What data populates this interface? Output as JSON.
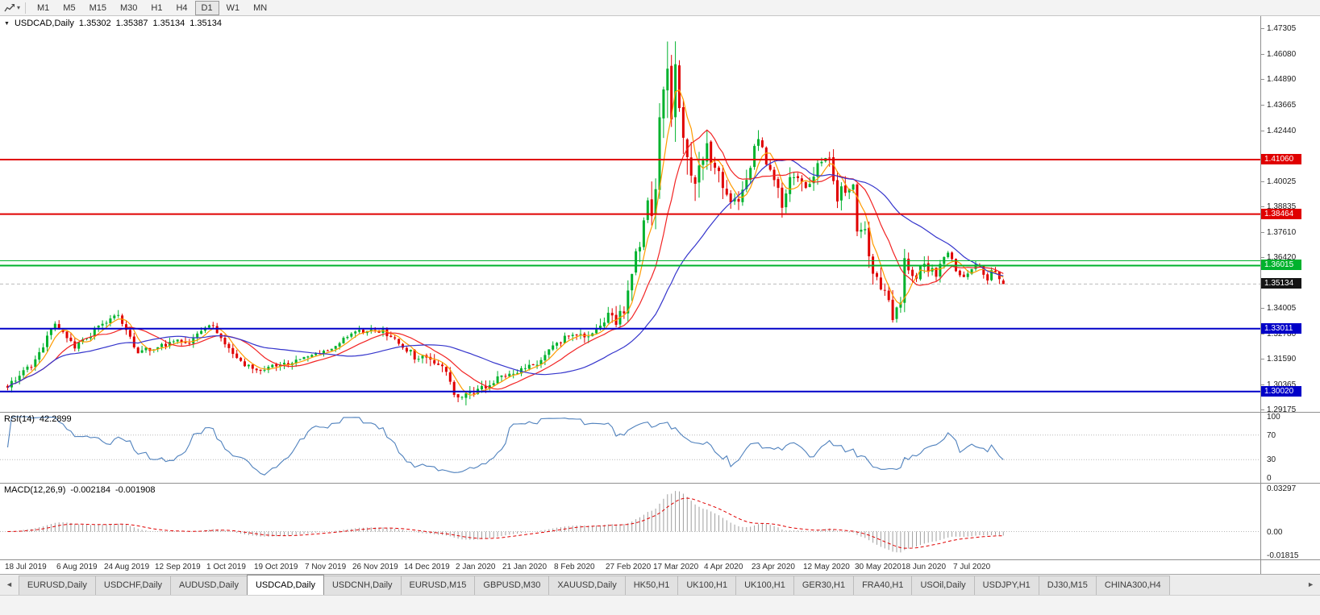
{
  "toolbar": {
    "chart_icon": "line-chart",
    "dropdown_caret": "▾",
    "timeframes": [
      {
        "label": "M1",
        "active": false
      },
      {
        "label": "M5",
        "active": false
      },
      {
        "label": "M15",
        "active": false
      },
      {
        "label": "M30",
        "active": false
      },
      {
        "label": "H1",
        "active": false
      },
      {
        "label": "H4",
        "active": false
      },
      {
        "label": "D1",
        "active": true
      },
      {
        "label": "W1",
        "active": false
      },
      {
        "label": "MN",
        "active": false
      }
    ]
  },
  "chart_header": {
    "menu_icon": "▼",
    "symbol": "USDCAD,Daily",
    "open": "1.35302",
    "high": "1.35387",
    "low": "1.35134",
    "close": "1.35134"
  },
  "price_axis": {
    "ticks": [
      {
        "label": "1.47305",
        "value": 1.47305
      },
      {
        "label": "1.46080",
        "value": 1.4608
      },
      {
        "label": "1.44890",
        "value": 1.4489
      },
      {
        "label": "1.43665",
        "value": 1.43665
      },
      {
        "label": "1.42440",
        "value": 1.4244
      },
      {
        "label": "1.40025",
        "value": 1.40025
      },
      {
        "label": "1.38835",
        "value": 1.38835
      },
      {
        "label": "1.37610",
        "value": 1.3761
      },
      {
        "label": "1.36420",
        "value": 1.3642
      },
      {
        "label": "1.34005",
        "value": 1.34005
      },
      {
        "label": "1.32780",
        "value": 1.3278
      },
      {
        "label": "1.31590",
        "value": 1.3159
      },
      {
        "label": "1.30365",
        "value": 1.30365
      },
      {
        "label": "1.29175",
        "value": 1.29175
      }
    ],
    "tags": [
      {
        "label": "1.41060",
        "value": 1.4106,
        "bg": "#e00000",
        "fg": "#ffffff",
        "draggable": true
      },
      {
        "label": "1.38464",
        "value": 1.38464,
        "bg": "#e00000",
        "fg": "#ffffff",
        "draggable": true
      },
      {
        "label": "1.36015",
        "value": 1.36015,
        "bg": "#00b22d",
        "fg": "#ffffff",
        "draggable": true
      },
      {
        "label": "1.35134",
        "value": 1.35134,
        "bg": "#141414",
        "fg": "#ffffff",
        "draggable": false
      },
      {
        "label": "1.33011",
        "value": 1.33011,
        "bg": "#0000c8",
        "fg": "#ffffff",
        "draggable": true
      },
      {
        "label": "1.30020",
        "value": 1.3002,
        "bg": "#0000c8",
        "fg": "#ffffff",
        "draggable": true
      }
    ]
  },
  "hlines": [
    {
      "price": 1.4106,
      "color": "#e00000",
      "width": 2
    },
    {
      "price": 1.38464,
      "color": "#e00000",
      "width": 2
    },
    {
      "price": 1.36245,
      "color": "#00b22d",
      "width": 1
    },
    {
      "price": 1.36015,
      "color": "#00b22d",
      "width": 2
    },
    {
      "price": 1.33011,
      "color": "#0000c8",
      "width": 2
    },
    {
      "price": 1.3002,
      "color": "#0000c8",
      "width": 2
    }
  ],
  "current_price": {
    "value": 1.35134,
    "label": "1.35134"
  },
  "indicators": {
    "rsi": {
      "name": "RSI(14)",
      "value": "42.2899",
      "period": 14,
      "color": "#4f81bd",
      "levels": [
        70,
        30
      ],
      "axis_labels": [
        {
          "label": "100",
          "value": 100
        },
        {
          "label": "70",
          "value": 70
        },
        {
          "label": "30",
          "value": 30
        },
        {
          "label": "0",
          "value": 0
        }
      ]
    },
    "macd": {
      "name": "MACD(12,26,9)",
      "macd_value": "-0.002184",
      "signal_value": "-0.001908",
      "fast": 12,
      "slow": 26,
      "signal": 9,
      "ylim": [
        -0.01815,
        0.03297
      ],
      "histogram_color": "#9f9f9f",
      "signal_color": "#e00000",
      "axis_labels": [
        {
          "label": "0.03297",
          "value": 0.03297
        },
        {
          "label": "0.00",
          "value": 0
        },
        {
          "label": "-0.01815",
          "value": -0.01815
        }
      ]
    }
  },
  "date_axis": [
    "18 Jul 2019",
    "6 Aug 2019",
    "24 Aug 2019",
    "12 Sep 2019",
    "1 Oct 2019",
    "19 Oct 2019",
    "7 Nov 2019",
    "26 Nov 2019",
    "14 Dec 2019",
    "2 Jan 2020",
    "21 Jan 2020",
    "8 Feb 2020",
    "27 Feb 2020",
    "17 Mar 2020",
    "4 Apr 2020",
    "23 Apr 2020",
    "12 May 2020",
    "30 May 2020",
    "18 Jun 2020",
    "7 Jul 2020"
  ],
  "tabs": {
    "left_arrow": "◄",
    "right_arrow": "►",
    "items": [
      {
        "label": "EURUSD,Daily",
        "active": false
      },
      {
        "label": "USDCHF,Daily",
        "active": false
      },
      {
        "label": "AUDUSD,Daily",
        "active": false
      },
      {
        "label": "USDCAD,Daily",
        "active": true
      },
      {
        "label": "USDCNH,Daily",
        "active": false
      },
      {
        "label": "EURUSD,M15",
        "active": false
      },
      {
        "label": "GBPUSD,M30",
        "active": false
      },
      {
        "label": "XAUUSD,Daily",
        "active": false
      },
      {
        "label": "HK50,H1",
        "active": false
      },
      {
        "label": "UK100,H1",
        "active": false
      },
      {
        "label": "UK100,H1",
        "active": false
      },
      {
        "label": "GER30,H1",
        "active": false
      },
      {
        "label": "FRA40,H1",
        "active": false
      },
      {
        "label": "USOil,Daily",
        "active": false
      },
      {
        "label": "USDJPY,H1",
        "active": false
      },
      {
        "label": "DJ30,M15",
        "active": false
      },
      {
        "label": "CHINA300,H4",
        "active": false
      }
    ]
  },
  "colors": {
    "up_candle": "#00b22d",
    "down_candle": "#e00000",
    "background": "#ffffff",
    "axis_text": "#1c1c1c"
  },
  "chart_data": {
    "type": "candlestick",
    "symbol": "USDCAD",
    "period": "Daily",
    "ylim": [
      1.2905,
      1.4785
    ],
    "n_candles": 253,
    "seed": 73,
    "last_candle": {
      "open": 1.35302,
      "high": 1.35387,
      "low": 1.35134,
      "close": 1.35134
    },
    "extremes": {
      "high": 1.4668,
      "low": 1.2951
    },
    "close_anchors": [
      [
        0,
        1.3035
      ],
      [
        6,
        1.312
      ],
      [
        12,
        1.332
      ],
      [
        17,
        1.3205
      ],
      [
        22,
        1.329
      ],
      [
        28,
        1.337
      ],
      [
        33,
        1.3185
      ],
      [
        40,
        1.323
      ],
      [
        46,
        1.324
      ],
      [
        52,
        1.332
      ],
      [
        57,
        1.318
      ],
      [
        62,
        1.3105
      ],
      [
        68,
        1.313
      ],
      [
        75,
        1.3155
      ],
      [
        82,
        1.3215
      ],
      [
        90,
        1.3295
      ],
      [
        95,
        1.329
      ],
      [
        98,
        1.325
      ],
      [
        103,
        1.317
      ],
      [
        108,
        1.3155
      ],
      [
        111,
        1.309
      ],
      [
        114,
        1.2968
      ],
      [
        118,
        1.3005
      ],
      [
        123,
        1.305
      ],
      [
        128,
        1.3095
      ],
      [
        133,
        1.312
      ],
      [
        137,
        1.3195
      ],
      [
        141,
        1.326
      ],
      [
        146,
        1.3265
      ],
      [
        150,
        1.33
      ],
      [
        152,
        1.339
      ],
      [
        154,
        1.333
      ],
      [
        156,
        1.339
      ],
      [
        159,
        1.366
      ],
      [
        161,
        1.379
      ],
      [
        162,
        1.392
      ],
      [
        163,
        1.38
      ],
      [
        164,
        1.402
      ],
      [
        165,
        1.426
      ],
      [
        166,
        1.45
      ],
      [
        167,
        1.456
      ],
      [
        168,
        1.435
      ],
      [
        169,
        1.449
      ],
      [
        171,
        1.419
      ],
      [
        173,
        1.399
      ],
      [
        175,
        1.406
      ],
      [
        177,
        1.415
      ],
      [
        179,
        1.409
      ],
      [
        181,
        1.401
      ],
      [
        183,
        1.394
      ],
      [
        185,
        1.389
      ],
      [
        187,
        1.402
      ],
      [
        190,
        1.421
      ],
      [
        192,
        1.406
      ],
      [
        194,
        1.403
      ],
      [
        196,
        1.388
      ],
      [
        198,
        1.405
      ],
      [
        200,
        1.403
      ],
      [
        203,
        1.398
      ],
      [
        205,
        1.411
      ],
      [
        208,
        1.411
      ],
      [
        210,
        1.393
      ],
      [
        212,
        1.397
      ],
      [
        214,
        1.399
      ],
      [
        215,
        1.378
      ],
      [
        217,
        1.377
      ],
      [
        219,
        1.357
      ],
      [
        221,
        1.35
      ],
      [
        223,
        1.342
      ],
      [
        224,
        1.337
      ],
      [
        226,
        1.341
      ],
      [
        227,
        1.362
      ],
      [
        229,
        1.353
      ],
      [
        232,
        1.36
      ],
      [
        235,
        1.356
      ],
      [
        238,
        1.368
      ],
      [
        240,
        1.358
      ],
      [
        243,
        1.355
      ],
      [
        245,
        1.361
      ],
      [
        248,
        1.3545
      ],
      [
        250,
        1.3585
      ],
      [
        252,
        1.35134
      ]
    ],
    "range_anchors": [
      [
        0,
        0.0055
      ],
      [
        60,
        0.005
      ],
      [
        100,
        0.005
      ],
      [
        110,
        0.008
      ],
      [
        114,
        0.009
      ],
      [
        120,
        0.006
      ],
      [
        140,
        0.005
      ],
      [
        152,
        0.008
      ],
      [
        158,
        0.013
      ],
      [
        163,
        0.02
      ],
      [
        166,
        0.03
      ],
      [
        169,
        0.028
      ],
      [
        172,
        0.022
      ],
      [
        178,
        0.016
      ],
      [
        186,
        0.013
      ],
      [
        196,
        0.012
      ],
      [
        205,
        0.01
      ],
      [
        214,
        0.011
      ],
      [
        219,
        0.013
      ],
      [
        224,
        0.012
      ],
      [
        230,
        0.009
      ],
      [
        238,
        0.007
      ],
      [
        245,
        0.006
      ],
      [
        252,
        0.005
      ]
    ],
    "forced": {
      "highs": [
        {
          "i": 167,
          "v": 1.4668
        }
      ],
      "lows": [
        {
          "i": 114,
          "v": 1.2951
        },
        {
          "i": 224,
          "v": 1.333
        }
      ],
      "last": {
        "o": 1.35302,
        "h": 1.35387,
        "l": 1.35134,
        "c": 1.35134
      }
    },
    "moving_averages": [
      {
        "type": "sma",
        "period": 5,
        "color": "#ff9b00"
      },
      {
        "type": "sma",
        "period": 13,
        "color": "#f22424"
      },
      {
        "type": "sma",
        "period": 34,
        "color": "#3535cc"
      }
    ]
  }
}
